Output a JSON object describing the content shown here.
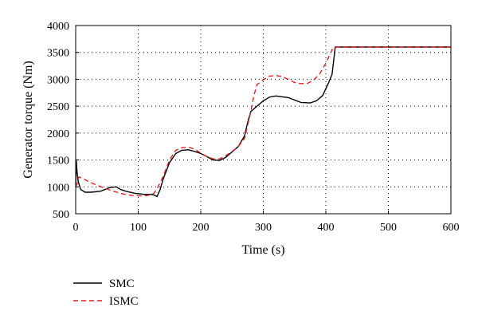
{
  "chart_data": {
    "type": "line",
    "title": "",
    "xlabel": "Time (s)",
    "ylabel": "Generator torque (Nm)",
    "xlim": [
      0,
      600
    ],
    "ylim": [
      500,
      4000
    ],
    "xticks": [
      0,
      100,
      200,
      300,
      400,
      500,
      600
    ],
    "yticks": [
      500,
      1000,
      1500,
      2000,
      2500,
      3000,
      3500,
      4000
    ],
    "grid": true,
    "legend_position": "below-left",
    "series": [
      {
        "name": "SMC",
        "color": "#000000",
        "style": "solid",
        "x": [
          0,
          1,
          2,
          4,
          8,
          15,
          25,
          40,
          55,
          65,
          72,
          80,
          95,
          110,
          120,
          125,
          130,
          135,
          140,
          150,
          160,
          170,
          180,
          190,
          200,
          210,
          220,
          230,
          240,
          250,
          260,
          270,
          275,
          280,
          290,
          300,
          310,
          320,
          340,
          360,
          375,
          385,
          395,
          405,
          410,
          415,
          450,
          500,
          550,
          600
        ],
        "y": [
          1050,
          1480,
          1300,
          1100,
          950,
          900,
          900,
          920,
          990,
          1000,
          950,
          920,
          880,
          860,
          860,
          850,
          820,
          950,
          1150,
          1450,
          1620,
          1680,
          1690,
          1660,
          1620,
          1560,
          1500,
          1490,
          1550,
          1650,
          1750,
          1950,
          2200,
          2400,
          2500,
          2600,
          2670,
          2690,
          2660,
          2570,
          2560,
          2600,
          2700,
          2950,
          3100,
          3600,
          3600,
          3600,
          3600,
          3600
        ]
      },
      {
        "name": "ISMC",
        "color": "#e02020",
        "style": "dashed",
        "x": [
          0,
          2,
          5,
          10,
          20,
          30,
          45,
          60,
          75,
          90,
          105,
          115,
          125,
          130,
          140,
          150,
          160,
          170,
          180,
          190,
          200,
          210,
          220,
          230,
          240,
          250,
          260,
          270,
          280,
          285,
          290,
          300,
          310,
          320,
          330,
          340,
          350,
          360,
          370,
          380,
          390,
          400,
          410,
          415,
          450,
          500,
          550,
          600
        ],
        "y": [
          1000,
          1050,
          1180,
          1170,
          1100,
          1050,
          980,
          920,
          870,
          840,
          830,
          840,
          880,
          960,
          1200,
          1500,
          1680,
          1730,
          1740,
          1700,
          1630,
          1560,
          1520,
          1520,
          1580,
          1660,
          1750,
          1900,
          2400,
          2700,
          2900,
          2990,
          3060,
          3070,
          3050,
          3000,
          2940,
          2920,
          2920,
          2980,
          3100,
          3300,
          3550,
          3600,
          3600,
          3600,
          3600,
          3600
        ]
      }
    ]
  }
}
